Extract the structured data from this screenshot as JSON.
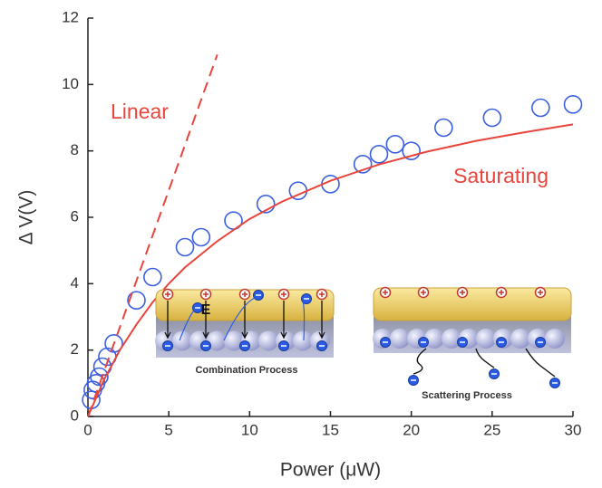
{
  "chart_data": {
    "type": "scatter",
    "xlabel": "Power (μW)",
    "ylabel": "Δ V(V)",
    "xlim": [
      0,
      30
    ],
    "xticks": [
      0,
      5,
      10,
      15,
      20,
      25,
      30
    ],
    "ylim": [
      0,
      12
    ],
    "yticks": [
      0,
      2,
      4,
      6,
      8,
      10,
      12
    ],
    "series": [
      {
        "color": "#3a5fe0",
        "marker": "open-circle",
        "x": [
          0.2,
          0.3,
          0.5,
          0.7,
          0.9,
          1.2,
          1.6,
          3,
          4,
          6,
          7,
          9,
          11,
          13,
          15,
          17,
          18,
          19,
          20,
          22,
          25,
          28,
          30
        ],
        "values": [
          0.5,
          0.8,
          1.0,
          1.2,
          1.5,
          1.8,
          2.2,
          3.5,
          4.2,
          5.1,
          5.4,
          5.9,
          6.4,
          6.8,
          7.0,
          7.6,
          7.9,
          8.2,
          8.0,
          8.7,
          9.0,
          9.3,
          9.4
        ]
      },
      {
        "name": "Linear",
        "color": "#e8453c",
        "style": "dashed",
        "x": [
          0,
          8
        ],
        "values": [
          0,
          10.9
        ]
      },
      {
        "name": "Saturating",
        "color": "#e8453c",
        "style": "solid",
        "x": [
          0,
          1,
          2,
          3,
          4,
          5,
          6,
          8,
          10,
          12,
          15,
          18,
          21,
          24,
          27,
          30
        ],
        "values": [
          0,
          1.11,
          2.02,
          2.77,
          3.44,
          4.0,
          4.49,
          5.28,
          5.95,
          6.47,
          7.1,
          7.59,
          7.98,
          8.3,
          8.56,
          8.8
        ]
      }
    ],
    "annotations": [
      "E",
      "Combination Process",
      "Scattering Process"
    ]
  }
}
